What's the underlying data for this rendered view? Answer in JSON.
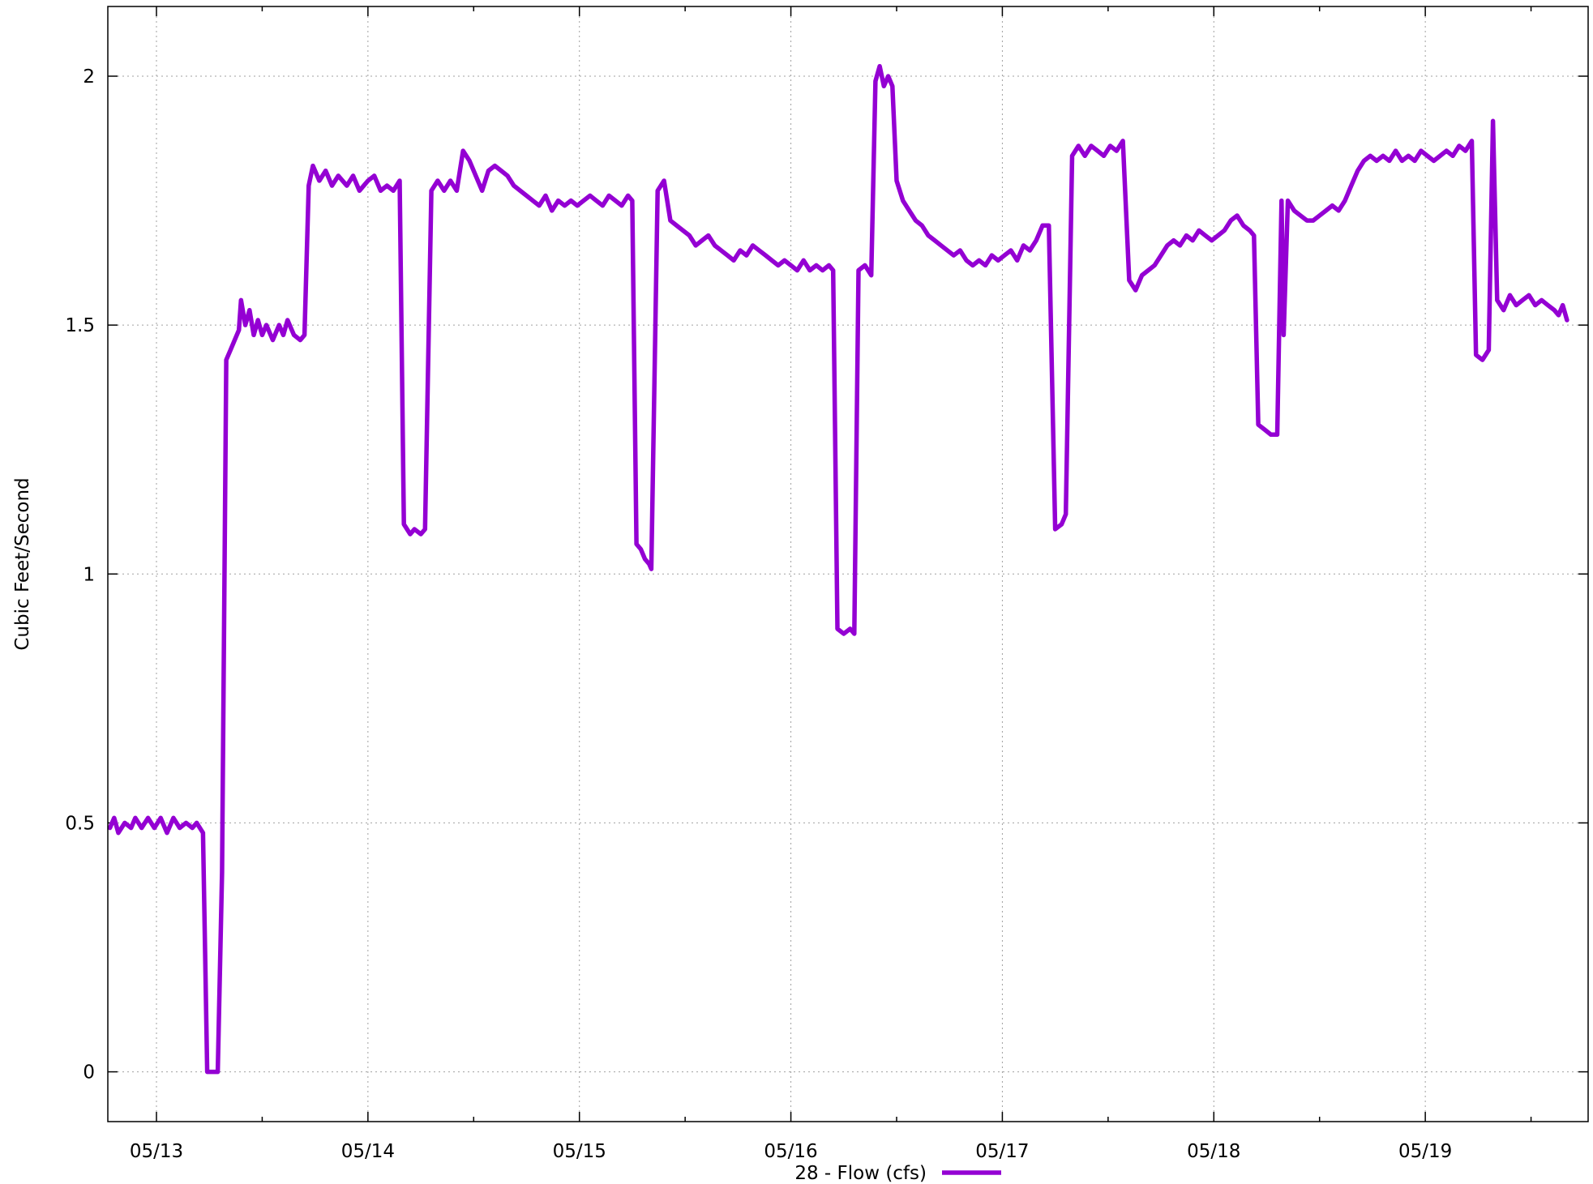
{
  "chart_data": {
    "type": "line",
    "title": "",
    "xlabel": "",
    "ylabel": "Cubic Feet/Second",
    "x_unit": "day",
    "xlim": [
      -0.23,
      6.77
    ],
    "ylim": [
      -0.1,
      2.14
    ],
    "grid": true,
    "legend_position": "bottom-center",
    "x_ticks": [
      {
        "value": 0,
        "label": "05/13"
      },
      {
        "value": 1,
        "label": "05/14"
      },
      {
        "value": 2,
        "label": "05/15"
      },
      {
        "value": 3,
        "label": "05/16"
      },
      {
        "value": 4,
        "label": "05/17"
      },
      {
        "value": 5,
        "label": "05/18"
      },
      {
        "value": 6,
        "label": "05/19"
      }
    ],
    "x_minor_ticks": [
      0.5,
      1.5,
      2.5,
      3.5,
      4.5,
      5.5,
      6.5
    ],
    "y_ticks": [
      {
        "value": 0,
        "label": "0"
      },
      {
        "value": 0.5,
        "label": "0.5"
      },
      {
        "value": 1,
        "label": "1"
      },
      {
        "value": 1.5,
        "label": "1.5"
      },
      {
        "value": 2,
        "label": "2"
      }
    ],
    "series": [
      {
        "name": "28 - Flow (cfs)",
        "color": "#9400d3",
        "points": [
          [
            -0.22,
            0.49
          ],
          [
            -0.2,
            0.51
          ],
          [
            -0.18,
            0.48
          ],
          [
            -0.15,
            0.5
          ],
          [
            -0.12,
            0.49
          ],
          [
            -0.1,
            0.51
          ],
          [
            -0.07,
            0.49
          ],
          [
            -0.04,
            0.51
          ],
          [
            -0.01,
            0.49
          ],
          [
            0.02,
            0.51
          ],
          [
            0.05,
            0.48
          ],
          [
            0.08,
            0.51
          ],
          [
            0.11,
            0.49
          ],
          [
            0.14,
            0.5
          ],
          [
            0.17,
            0.49
          ],
          [
            0.19,
            0.5
          ],
          [
            0.22,
            0.48
          ],
          [
            0.24,
            0.0
          ],
          [
            0.29,
            0.0
          ],
          [
            0.31,
            0.4
          ],
          [
            0.33,
            1.43
          ],
          [
            0.35,
            1.45
          ],
          [
            0.37,
            1.47
          ],
          [
            0.39,
            1.49
          ],
          [
            0.4,
            1.55
          ],
          [
            0.42,
            1.5
          ],
          [
            0.44,
            1.53
          ],
          [
            0.46,
            1.48
          ],
          [
            0.48,
            1.51
          ],
          [
            0.5,
            1.48
          ],
          [
            0.52,
            1.5
          ],
          [
            0.55,
            1.47
          ],
          [
            0.58,
            1.5
          ],
          [
            0.6,
            1.48
          ],
          [
            0.62,
            1.51
          ],
          [
            0.65,
            1.48
          ],
          [
            0.68,
            1.47
          ],
          [
            0.7,
            1.48
          ],
          [
            0.72,
            1.78
          ],
          [
            0.74,
            1.82
          ],
          [
            0.77,
            1.79
          ],
          [
            0.8,
            1.81
          ],
          [
            0.83,
            1.78
          ],
          [
            0.86,
            1.8
          ],
          [
            0.9,
            1.78
          ],
          [
            0.93,
            1.8
          ],
          [
            0.96,
            1.77
          ],
          [
            1.0,
            1.79
          ],
          [
            1.03,
            1.8
          ],
          [
            1.06,
            1.77
          ],
          [
            1.09,
            1.78
          ],
          [
            1.12,
            1.77
          ],
          [
            1.15,
            1.79
          ],
          [
            1.17,
            1.1
          ],
          [
            1.2,
            1.08
          ],
          [
            1.22,
            1.09
          ],
          [
            1.25,
            1.08
          ],
          [
            1.27,
            1.09
          ],
          [
            1.3,
            1.77
          ],
          [
            1.33,
            1.79
          ],
          [
            1.36,
            1.77
          ],
          [
            1.39,
            1.79
          ],
          [
            1.42,
            1.77
          ],
          [
            1.45,
            1.85
          ],
          [
            1.48,
            1.83
          ],
          [
            1.51,
            1.8
          ],
          [
            1.54,
            1.77
          ],
          [
            1.57,
            1.81
          ],
          [
            1.6,
            1.82
          ],
          [
            1.63,
            1.81
          ],
          [
            1.66,
            1.8
          ],
          [
            1.69,
            1.78
          ],
          [
            1.72,
            1.77
          ],
          [
            1.75,
            1.76
          ],
          [
            1.78,
            1.75
          ],
          [
            1.81,
            1.74
          ],
          [
            1.84,
            1.76
          ],
          [
            1.87,
            1.73
          ],
          [
            1.9,
            1.75
          ],
          [
            1.93,
            1.74
          ],
          [
            1.96,
            1.75
          ],
          [
            1.99,
            1.74
          ],
          [
            2.02,
            1.75
          ],
          [
            2.05,
            1.76
          ],
          [
            2.08,
            1.75
          ],
          [
            2.11,
            1.74
          ],
          [
            2.14,
            1.76
          ],
          [
            2.17,
            1.75
          ],
          [
            2.2,
            1.74
          ],
          [
            2.23,
            1.76
          ],
          [
            2.25,
            1.75
          ],
          [
            2.27,
            1.06
          ],
          [
            2.29,
            1.05
          ],
          [
            2.31,
            1.03
          ],
          [
            2.33,
            1.02
          ],
          [
            2.34,
            1.01
          ],
          [
            2.37,
            1.77
          ],
          [
            2.4,
            1.79
          ],
          [
            2.43,
            1.71
          ],
          [
            2.46,
            1.7
          ],
          [
            2.49,
            1.69
          ],
          [
            2.52,
            1.68
          ],
          [
            2.55,
            1.66
          ],
          [
            2.58,
            1.67
          ],
          [
            2.61,
            1.68
          ],
          [
            2.64,
            1.66
          ],
          [
            2.67,
            1.65
          ],
          [
            2.7,
            1.64
          ],
          [
            2.73,
            1.63
          ],
          [
            2.76,
            1.65
          ],
          [
            2.79,
            1.64
          ],
          [
            2.82,
            1.66
          ],
          [
            2.85,
            1.65
          ],
          [
            2.88,
            1.64
          ],
          [
            2.91,
            1.63
          ],
          [
            2.94,
            1.62
          ],
          [
            2.97,
            1.63
          ],
          [
            3.0,
            1.62
          ],
          [
            3.03,
            1.61
          ],
          [
            3.06,
            1.63
          ],
          [
            3.09,
            1.61
          ],
          [
            3.12,
            1.62
          ],
          [
            3.15,
            1.61
          ],
          [
            3.18,
            1.62
          ],
          [
            3.2,
            1.61
          ],
          [
            3.22,
            0.89
          ],
          [
            3.25,
            0.88
          ],
          [
            3.28,
            0.89
          ],
          [
            3.3,
            0.88
          ],
          [
            3.32,
            1.61
          ],
          [
            3.35,
            1.62
          ],
          [
            3.38,
            1.6
          ],
          [
            3.4,
            1.99
          ],
          [
            3.42,
            2.02
          ],
          [
            3.44,
            1.98
          ],
          [
            3.46,
            2.0
          ],
          [
            3.48,
            1.98
          ],
          [
            3.5,
            1.79
          ],
          [
            3.53,
            1.75
          ],
          [
            3.56,
            1.73
          ],
          [
            3.59,
            1.71
          ],
          [
            3.62,
            1.7
          ],
          [
            3.65,
            1.68
          ],
          [
            3.68,
            1.67
          ],
          [
            3.71,
            1.66
          ],
          [
            3.74,
            1.65
          ],
          [
            3.77,
            1.64
          ],
          [
            3.8,
            1.65
          ],
          [
            3.83,
            1.63
          ],
          [
            3.86,
            1.62
          ],
          [
            3.89,
            1.63
          ],
          [
            3.92,
            1.62
          ],
          [
            3.95,
            1.64
          ],
          [
            3.98,
            1.63
          ],
          [
            4.01,
            1.64
          ],
          [
            4.04,
            1.65
          ],
          [
            4.07,
            1.63
          ],
          [
            4.1,
            1.66
          ],
          [
            4.13,
            1.65
          ],
          [
            4.16,
            1.67
          ],
          [
            4.19,
            1.7
          ],
          [
            4.22,
            1.7
          ],
          [
            4.25,
            1.09
          ],
          [
            4.28,
            1.1
          ],
          [
            4.3,
            1.12
          ],
          [
            4.33,
            1.84
          ],
          [
            4.36,
            1.86
          ],
          [
            4.39,
            1.84
          ],
          [
            4.42,
            1.86
          ],
          [
            4.45,
            1.85
          ],
          [
            4.48,
            1.84
          ],
          [
            4.51,
            1.86
          ],
          [
            4.54,
            1.85
          ],
          [
            4.57,
            1.87
          ],
          [
            4.6,
            1.59
          ],
          [
            4.63,
            1.57
          ],
          [
            4.66,
            1.6
          ],
          [
            4.69,
            1.61
          ],
          [
            4.72,
            1.62
          ],
          [
            4.75,
            1.64
          ],
          [
            4.78,
            1.66
          ],
          [
            4.81,
            1.67
          ],
          [
            4.84,
            1.66
          ],
          [
            4.87,
            1.68
          ],
          [
            4.9,
            1.67
          ],
          [
            4.93,
            1.69
          ],
          [
            4.96,
            1.68
          ],
          [
            4.99,
            1.67
          ],
          [
            5.02,
            1.68
          ],
          [
            5.05,
            1.69
          ],
          [
            5.08,
            1.71
          ],
          [
            5.11,
            1.72
          ],
          [
            5.14,
            1.7
          ],
          [
            5.17,
            1.69
          ],
          [
            5.19,
            1.68
          ],
          [
            5.21,
            1.3
          ],
          [
            5.24,
            1.29
          ],
          [
            5.27,
            1.28
          ],
          [
            5.3,
            1.28
          ],
          [
            5.32,
            1.75
          ],
          [
            5.33,
            1.48
          ],
          [
            5.35,
            1.75
          ],
          [
            5.38,
            1.73
          ],
          [
            5.41,
            1.72
          ],
          [
            5.44,
            1.71
          ],
          [
            5.47,
            1.71
          ],
          [
            5.5,
            1.72
          ],
          [
            5.53,
            1.73
          ],
          [
            5.56,
            1.74
          ],
          [
            5.59,
            1.73
          ],
          [
            5.62,
            1.75
          ],
          [
            5.65,
            1.78
          ],
          [
            5.68,
            1.81
          ],
          [
            5.71,
            1.83
          ],
          [
            5.74,
            1.84
          ],
          [
            5.77,
            1.83
          ],
          [
            5.8,
            1.84
          ],
          [
            5.83,
            1.83
          ],
          [
            5.86,
            1.85
          ],
          [
            5.89,
            1.83
          ],
          [
            5.92,
            1.84
          ],
          [
            5.95,
            1.83
          ],
          [
            5.98,
            1.85
          ],
          [
            6.01,
            1.84
          ],
          [
            6.04,
            1.83
          ],
          [
            6.07,
            1.84
          ],
          [
            6.1,
            1.85
          ],
          [
            6.13,
            1.84
          ],
          [
            6.16,
            1.86
          ],
          [
            6.19,
            1.85
          ],
          [
            6.22,
            1.87
          ],
          [
            6.24,
            1.44
          ],
          [
            6.27,
            1.43
          ],
          [
            6.3,
            1.45
          ],
          [
            6.32,
            1.91
          ],
          [
            6.34,
            1.55
          ],
          [
            6.37,
            1.53
          ],
          [
            6.4,
            1.56
          ],
          [
            6.43,
            1.54
          ],
          [
            6.46,
            1.55
          ],
          [
            6.49,
            1.56
          ],
          [
            6.52,
            1.54
          ],
          [
            6.55,
            1.55
          ],
          [
            6.58,
            1.54
          ],
          [
            6.61,
            1.53
          ],
          [
            6.63,
            1.52
          ],
          [
            6.65,
            1.54
          ],
          [
            6.67,
            1.51
          ]
        ]
      }
    ]
  }
}
